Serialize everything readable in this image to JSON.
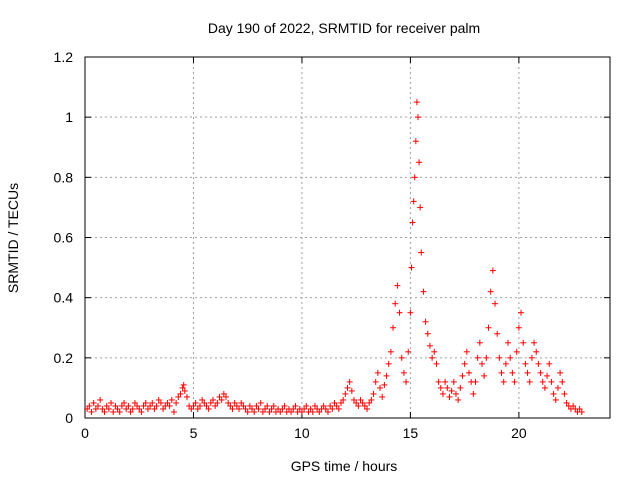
{
  "chart_data": {
    "type": "scatter",
    "title": "Day 190 of 2022, SRMTID for receiver palm",
    "xlabel": "GPS time / hours",
    "ylabel": "SRMTID / TECUs",
    "xlim": [
      0,
      24.2
    ],
    "ylim": [
      0,
      1.2
    ],
    "xticks": [
      0,
      5,
      10,
      15,
      20
    ],
    "xtick_labels": [
      "0",
      "5",
      "10",
      "15",
      "20"
    ],
    "yticks": [
      0,
      0.2,
      0.4,
      0.6,
      0.8,
      1.0,
      1.2
    ],
    "ytick_labels": [
      "0",
      "0.2",
      "0.4",
      "0.6",
      "0.8",
      "1",
      "1.2"
    ],
    "grid": true,
    "marker": "plus",
    "series": [
      {
        "name": "SRMTID",
        "color": "#ff0000",
        "points": [
          [
            0.1,
            0.03
          ],
          [
            0.2,
            0.04
          ],
          [
            0.3,
            0.02
          ],
          [
            0.4,
            0.05
          ],
          [
            0.5,
            0.03
          ],
          [
            0.6,
            0.04
          ],
          [
            0.7,
            0.06
          ],
          [
            0.8,
            0.03
          ],
          [
            0.9,
            0.02
          ],
          [
            1.0,
            0.04
          ],
          [
            1.1,
            0.03
          ],
          [
            1.2,
            0.05
          ],
          [
            1.3,
            0.02
          ],
          [
            1.4,
            0.04
          ],
          [
            1.5,
            0.03
          ],
          [
            1.6,
            0.02
          ],
          [
            1.7,
            0.04
          ],
          [
            1.8,
            0.05
          ],
          [
            1.9,
            0.03
          ],
          [
            2.0,
            0.04
          ],
          [
            2.1,
            0.02
          ],
          [
            2.2,
            0.03
          ],
          [
            2.3,
            0.05
          ],
          [
            2.4,
            0.04
          ],
          [
            2.5,
            0.03
          ],
          [
            2.6,
            0.02
          ],
          [
            2.7,
            0.04
          ],
          [
            2.8,
            0.05
          ],
          [
            2.9,
            0.03
          ],
          [
            3.0,
            0.04
          ],
          [
            3.1,
            0.05
          ],
          [
            3.2,
            0.03
          ],
          [
            3.3,
            0.04
          ],
          [
            3.4,
            0.06
          ],
          [
            3.5,
            0.05
          ],
          [
            3.6,
            0.03
          ],
          [
            3.7,
            0.04
          ],
          [
            3.8,
            0.05
          ],
          [
            3.9,
            0.04
          ],
          [
            4.0,
            0.06
          ],
          [
            4.1,
            0.02
          ],
          [
            4.2,
            0.05
          ],
          [
            4.3,
            0.07
          ],
          [
            4.4,
            0.08
          ],
          [
            4.5,
            0.1
          ],
          [
            4.55,
            0.11
          ],
          [
            4.6,
            0.09
          ],
          [
            4.7,
            0.07
          ],
          [
            4.8,
            0.04
          ],
          [
            4.9,
            0.03
          ],
          [
            5.0,
            0.04
          ],
          [
            5.1,
            0.05
          ],
          [
            5.2,
            0.03
          ],
          [
            5.3,
            0.04
          ],
          [
            5.4,
            0.06
          ],
          [
            5.5,
            0.05
          ],
          [
            5.6,
            0.04
          ],
          [
            5.7,
            0.03
          ],
          [
            5.8,
            0.05
          ],
          [
            5.9,
            0.06
          ],
          [
            6.0,
            0.04
          ],
          [
            6.1,
            0.05
          ],
          [
            6.2,
            0.07
          ],
          [
            6.3,
            0.06
          ],
          [
            6.4,
            0.08
          ],
          [
            6.5,
            0.07
          ],
          [
            6.6,
            0.05
          ],
          [
            6.7,
            0.04
          ],
          [
            6.8,
            0.03
          ],
          [
            6.9,
            0.05
          ],
          [
            7.0,
            0.04
          ],
          [
            7.1,
            0.03
          ],
          [
            7.2,
            0.05
          ],
          [
            7.3,
            0.04
          ],
          [
            7.4,
            0.03
          ],
          [
            7.5,
            0.02
          ],
          [
            7.6,
            0.04
          ],
          [
            7.7,
            0.03
          ],
          [
            7.8,
            0.02
          ],
          [
            7.9,
            0.04
          ],
          [
            8.0,
            0.03
          ],
          [
            8.1,
            0.05
          ],
          [
            8.2,
            0.02
          ],
          [
            8.3,
            0.03
          ],
          [
            8.4,
            0.04
          ],
          [
            8.5,
            0.02
          ],
          [
            8.6,
            0.03
          ],
          [
            8.7,
            0.04
          ],
          [
            8.8,
            0.02
          ],
          [
            8.9,
            0.03
          ],
          [
            9.0,
            0.02
          ],
          [
            9.1,
            0.03
          ],
          [
            9.2,
            0.04
          ],
          [
            9.3,
            0.02
          ],
          [
            9.4,
            0.03
          ],
          [
            9.5,
            0.02
          ],
          [
            9.6,
            0.03
          ],
          [
            9.7,
            0.04
          ],
          [
            9.8,
            0.02
          ],
          [
            9.9,
            0.03
          ],
          [
            10.0,
            0.02
          ],
          [
            10.1,
            0.03
          ],
          [
            10.2,
            0.04
          ],
          [
            10.3,
            0.02
          ],
          [
            10.4,
            0.03
          ],
          [
            10.5,
            0.02
          ],
          [
            10.6,
            0.04
          ],
          [
            10.7,
            0.03
          ],
          [
            10.8,
            0.02
          ],
          [
            10.9,
            0.03
          ],
          [
            11.0,
            0.04
          ],
          [
            11.1,
            0.03
          ],
          [
            11.2,
            0.02
          ],
          [
            11.3,
            0.04
          ],
          [
            11.4,
            0.03
          ],
          [
            11.5,
            0.05
          ],
          [
            11.6,
            0.04
          ],
          [
            11.7,
            0.03
          ],
          [
            11.8,
            0.05
          ],
          [
            11.9,
            0.06
          ],
          [
            12.0,
            0.08
          ],
          [
            12.1,
            0.1
          ],
          [
            12.2,
            0.12
          ],
          [
            12.3,
            0.09
          ],
          [
            12.4,
            0.06
          ],
          [
            12.5,
            0.05
          ],
          [
            12.6,
            0.04
          ],
          [
            12.7,
            0.06
          ],
          [
            12.8,
            0.05
          ],
          [
            12.9,
            0.04
          ],
          [
            13.0,
            0.03
          ],
          [
            13.1,
            0.05
          ],
          [
            13.2,
            0.06
          ],
          [
            13.3,
            0.08
          ],
          [
            13.4,
            0.12
          ],
          [
            13.5,
            0.15
          ],
          [
            13.6,
            0.1
          ],
          [
            13.7,
            0.07
          ],
          [
            13.8,
            0.11
          ],
          [
            13.9,
            0.14
          ],
          [
            14.0,
            0.18
          ],
          [
            14.1,
            0.22
          ],
          [
            14.2,
            0.3
          ],
          [
            14.3,
            0.38
          ],
          [
            14.4,
            0.44
          ],
          [
            14.5,
            0.35
          ],
          [
            14.6,
            0.2
          ],
          [
            14.7,
            0.15
          ],
          [
            14.8,
            0.12
          ],
          [
            14.9,
            0.22
          ],
          [
            15.0,
            0.35
          ],
          [
            15.05,
            0.5
          ],
          [
            15.1,
            0.65
          ],
          [
            15.15,
            0.72
          ],
          [
            15.2,
            0.8
          ],
          [
            15.25,
            0.92
          ],
          [
            15.3,
            1.05
          ],
          [
            15.35,
            1.0
          ],
          [
            15.4,
            0.85
          ],
          [
            15.45,
            0.7
          ],
          [
            15.5,
            0.55
          ],
          [
            15.6,
            0.42
          ],
          [
            15.7,
            0.32
          ],
          [
            15.8,
            0.28
          ],
          [
            15.9,
            0.24
          ],
          [
            16.0,
            0.2
          ],
          [
            16.1,
            0.22
          ],
          [
            16.2,
            0.18
          ],
          [
            16.3,
            0.12
          ],
          [
            16.4,
            0.1
          ],
          [
            16.5,
            0.08
          ],
          [
            16.6,
            0.12
          ],
          [
            16.7,
            0.1
          ],
          [
            16.8,
            0.07
          ],
          [
            16.9,
            0.09
          ],
          [
            17.0,
            0.12
          ],
          [
            17.1,
            0.08
          ],
          [
            17.2,
            0.06
          ],
          [
            17.3,
            0.1
          ],
          [
            17.4,
            0.14
          ],
          [
            17.5,
            0.18
          ],
          [
            17.6,
            0.22
          ],
          [
            17.7,
            0.15
          ],
          [
            17.8,
            0.12
          ],
          [
            17.9,
            0.08
          ],
          [
            18.0,
            0.12
          ],
          [
            18.1,
            0.2
          ],
          [
            18.2,
            0.25
          ],
          [
            18.3,
            0.18
          ],
          [
            18.4,
            0.14
          ],
          [
            18.5,
            0.2
          ],
          [
            18.6,
            0.3
          ],
          [
            18.7,
            0.42
          ],
          [
            18.8,
            0.49
          ],
          [
            18.9,
            0.38
          ],
          [
            19.0,
            0.28
          ],
          [
            19.1,
            0.2
          ],
          [
            19.2,
            0.15
          ],
          [
            19.3,
            0.12
          ],
          [
            19.4,
            0.18
          ],
          [
            19.5,
            0.25
          ],
          [
            19.6,
            0.2
          ],
          [
            19.7,
            0.15
          ],
          [
            19.8,
            0.12
          ],
          [
            19.9,
            0.22
          ],
          [
            20.0,
            0.3
          ],
          [
            20.1,
            0.35
          ],
          [
            20.2,
            0.25
          ],
          [
            20.3,
            0.18
          ],
          [
            20.4,
            0.15
          ],
          [
            20.5,
            0.12
          ],
          [
            20.6,
            0.2
          ],
          [
            20.7,
            0.25
          ],
          [
            20.8,
            0.22
          ],
          [
            20.9,
            0.18
          ],
          [
            21.0,
            0.15
          ],
          [
            21.1,
            0.12
          ],
          [
            21.2,
            0.1
          ],
          [
            21.3,
            0.14
          ],
          [
            21.4,
            0.18
          ],
          [
            21.5,
            0.12
          ],
          [
            21.6,
            0.08
          ],
          [
            21.7,
            0.06
          ],
          [
            21.8,
            0.1
          ],
          [
            21.9,
            0.15
          ],
          [
            22.0,
            0.12
          ],
          [
            22.1,
            0.08
          ],
          [
            22.2,
            0.05
          ],
          [
            22.3,
            0.04
          ],
          [
            22.4,
            0.03
          ],
          [
            22.5,
            0.04
          ],
          [
            22.6,
            0.03
          ],
          [
            22.7,
            0.02
          ],
          [
            22.8,
            0.03
          ],
          [
            22.9,
            0.02
          ]
        ]
      }
    ]
  }
}
